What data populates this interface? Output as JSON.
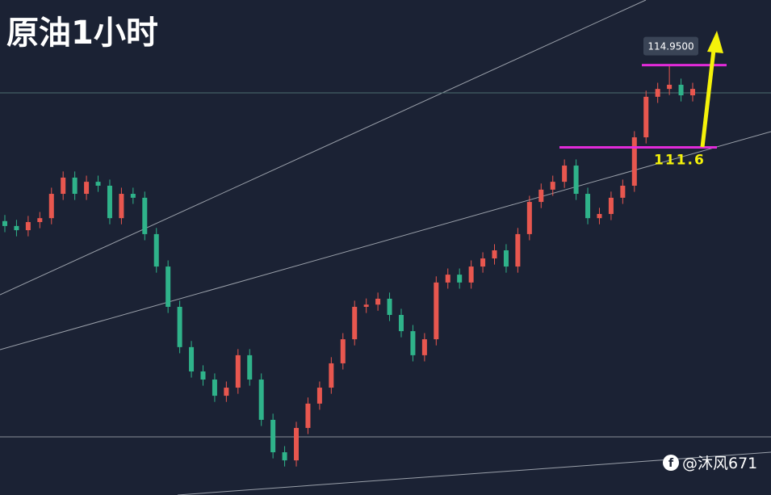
{
  "chart_data": {
    "type": "candlestick",
    "title": "原油1小时",
    "open": [
      108.6,
      108.4,
      108.23,
      108.56,
      108.72,
      109.71,
      110.37,
      109.71,
      110.2,
      110.04,
      108.72,
      109.71,
      109.55,
      108.07,
      106.75,
      105.11,
      103.47,
      102.48,
      102.15,
      101.49,
      101.82,
      103.14,
      102.15,
      100.51,
      99.19,
      98.86,
      100.18,
      101.17,
      101.82,
      102.81,
      103.79,
      105.11,
      105.2,
      105.44,
      104.78,
      104.12,
      103.14,
      103.79,
      106.1,
      106.42,
      106.1,
      106.75,
      107.08,
      107.41,
      106.75,
      108.07,
      109.38,
      109.88,
      110.2,
      110.86,
      109.71,
      108.72,
      108.89,
      109.55,
      110.04,
      112.01,
      113.66,
      113.98,
      114.15,
      113.72
    ],
    "high": [
      108.85,
      108.65,
      108.81,
      108.97,
      109.96,
      110.62,
      110.62,
      110.45,
      110.45,
      110.29,
      109.96,
      109.96,
      109.8,
      108.32,
      107.0,
      105.36,
      103.72,
      102.73,
      102.4,
      102.07,
      103.39,
      103.39,
      102.4,
      100.76,
      99.44,
      100.43,
      101.42,
      102.07,
      103.06,
      104.04,
      105.36,
      105.45,
      105.69,
      105.69,
      105.03,
      104.37,
      104.04,
      106.35,
      106.67,
      106.67,
      107.0,
      107.33,
      107.66,
      107.66,
      108.32,
      109.63,
      110.13,
      110.45,
      111.11,
      111.11,
      109.96,
      109.14,
      109.8,
      110.29,
      112.26,
      113.91,
      114.23,
      114.95,
      114.4,
      114.23
    ],
    "low": [
      108.15,
      107.98,
      107.98,
      108.31,
      108.47,
      109.46,
      109.46,
      109.46,
      109.79,
      108.47,
      108.47,
      109.3,
      107.82,
      106.5,
      104.86,
      103.22,
      102.23,
      101.9,
      101.24,
      101.24,
      101.57,
      101.9,
      100.26,
      98.94,
      98.61,
      98.61,
      99.93,
      100.92,
      101.57,
      102.56,
      103.54,
      104.86,
      104.95,
      104.53,
      103.87,
      102.89,
      102.89,
      103.54,
      105.85,
      105.85,
      105.85,
      106.5,
      106.83,
      106.5,
      106.5,
      107.82,
      109.13,
      109.63,
      109.95,
      109.46,
      108.47,
      108.47,
      108.64,
      109.3,
      109.79,
      111.76,
      113.41,
      113.73,
      113.47,
      113.47
    ],
    "close": [
      108.4,
      108.23,
      108.56,
      108.72,
      109.71,
      110.37,
      109.71,
      110.2,
      110.04,
      108.72,
      109.71,
      109.55,
      108.07,
      106.75,
      105.11,
      103.47,
      102.48,
      102.15,
      101.49,
      101.82,
      103.14,
      102.15,
      100.51,
      99.19,
      98.86,
      100.18,
      101.17,
      101.82,
      102.81,
      103.79,
      105.11,
      105.2,
      105.44,
      104.78,
      104.12,
      103.14,
      103.79,
      106.1,
      106.42,
      106.1,
      106.75,
      107.08,
      107.41,
      106.75,
      108.07,
      109.38,
      109.88,
      110.2,
      110.86,
      109.71,
      108.72,
      108.89,
      109.55,
      110.04,
      112.01,
      113.66,
      113.98,
      114.15,
      113.72,
      113.98
    ],
    "up_color": "#e8574f",
    "down_color": "#2fb38a",
    "ylim": [
      97.45,
      117.6
    ],
    "annotations": [
      {
        "label": "114.9500",
        "value": 114.95
      },
      {
        "label": "111.6",
        "value": 111.6
      }
    ]
  },
  "watermark": "@沐风671"
}
